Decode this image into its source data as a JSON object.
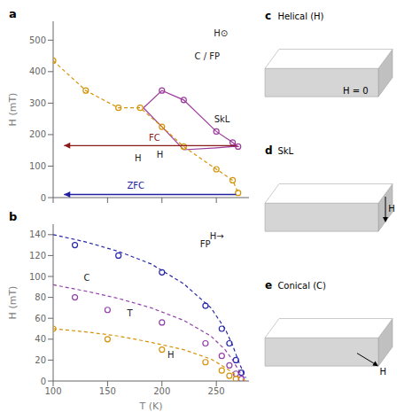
{
  "chart_data": [
    {
      "type": "scatter",
      "title": "a",
      "ylabel": "H (mT)",
      "xlim": [
        100,
        280
      ],
      "ylim": [
        0,
        560
      ],
      "xticks": [
        100,
        150,
        200,
        250
      ],
      "yticks": [
        0,
        100,
        200,
        300,
        400,
        500
      ],
      "tick_labels": "y",
      "series": [
        {
          "type": "polygon",
          "color": "#9B3A9B",
          "x": [
            183,
            200,
            220,
            250,
            265,
            270,
            265,
            250,
            220,
            200,
            183
          ],
          "values": [
            285,
            340,
            310,
            210,
            175,
            162,
            162,
            158,
            152,
            225,
            285
          ]
        },
        {
          "type": "line",
          "line_style": "dashed",
          "marker": "open_circle",
          "color": "#D4930A",
          "x": [
            100,
            130,
            160,
            180,
            200,
            220,
            250,
            265,
            270
          ],
          "values": [
            435,
            340,
            285,
            285,
            225,
            162,
            90,
            55,
            15
          ]
        },
        {
          "type": "scatter",
          "marker": "open_circle",
          "color": "#9B3A9B",
          "x": [
            200,
            220,
            250,
            265,
            270
          ],
          "values": [
            340,
            310,
            210,
            175,
            162
          ]
        }
      ],
      "arrows": [
        {
          "from": [
            268,
            165
          ],
          "to": [
            110,
            165
          ],
          "color": "#8B1A1A"
        },
        {
          "from": [
            268,
            10
          ],
          "to": [
            110,
            10
          ],
          "color": "#2020A0"
        }
      ],
      "annotations": [
        {
          "text": "FC",
          "x": 188,
          "y": 179,
          "color": "#8B1A1A"
        },
        {
          "text": "ZFC",
          "x": 168,
          "y": 28,
          "color": "#2020A0"
        },
        {
          "text": "C / FP",
          "x": 230,
          "y": 440
        },
        {
          "text": "SkL",
          "x": 248,
          "y": 238
        },
        {
          "text": "H",
          "x": 175,
          "y": 115
        },
        {
          "text": "H",
          "x": 195,
          "y": 128
        },
        {
          "text": "H⊙",
          "x": 247.6,
          "y": 512.4
        }
      ]
    },
    {
      "type": "scatter",
      "title": "b",
      "xlabel": "T (K)",
      "ylabel": "H (mT)",
      "xlim": [
        100,
        280
      ],
      "ylim": [
        0,
        150
      ],
      "xticks": [
        100,
        150,
        200,
        250
      ],
      "yticks": [
        0,
        20,
        40,
        60,
        80,
        100,
        120,
        140
      ],
      "series": [
        {
          "type": "line",
          "line_style": "dashed",
          "color": "#2828AA",
          "x": [
            100,
            130,
            160,
            190,
            220,
            245,
            258,
            265,
            270,
            274,
            277
          ],
          "values": [
            140,
            133,
            124,
            112,
            93,
            70,
            50,
            34,
            20,
            10,
            3
          ]
        },
        {
          "type": "scatter",
          "marker": "open_circle",
          "color": "#2828AA",
          "x": [
            120,
            160,
            200,
            240,
            255,
            262,
            268,
            273
          ],
          "values": [
            130,
            120,
            104,
            72,
            50,
            36,
            20,
            8
          ]
        },
        {
          "type": "line",
          "line_style": "dashed",
          "color": "#9040A8",
          "x": [
            100,
            130,
            160,
            190,
            220,
            245,
            258,
            265,
            270,
            274,
            277
          ],
          "values": [
            92,
            86,
            79,
            70,
            58,
            43,
            30,
            20,
            11,
            5,
            1
          ]
        },
        {
          "type": "scatter",
          "marker": "open_circle",
          "color": "#9040A8",
          "x": [
            120,
            150,
            200,
            240,
            255,
            262,
            268,
            273
          ],
          "values": [
            80,
            68,
            56,
            36,
            24,
            15,
            7,
            2
          ]
        },
        {
          "type": "line",
          "line_style": "dashed",
          "color": "#D4930A",
          "x": [
            100,
            130,
            160,
            190,
            220,
            245,
            258,
            265,
            270,
            274,
            277
          ],
          "values": [
            50,
            47,
            43,
            37,
            30,
            21,
            13,
            8,
            4,
            2,
            0
          ]
        },
        {
          "type": "scatter",
          "marker": "open_circle",
          "color": "#D4930A",
          "x": [
            100,
            150,
            200,
            240,
            255,
            262,
            268
          ],
          "values": [
            50,
            40,
            30,
            18,
            10,
            5,
            2
          ]
        }
      ],
      "annotations": [
        {
          "text": "FP",
          "x": 235,
          "y": 128
        },
        {
          "text": "C",
          "x": 128,
          "y": 96
        },
        {
          "text": "T",
          "x": 168,
          "y": 62
        },
        {
          "text": "H",
          "x": 205,
          "y": 22
        },
        {
          "text": "H→",
          "x": 244,
          "y": 135.75
        }
      ]
    },
    {
      "type": "schematic",
      "title": "c",
      "subtitle": "Helical (H)",
      "annotations": [
        {
          "text": "H = 0"
        }
      ]
    },
    {
      "type": "schematic",
      "title": "d",
      "subtitle": "SkL",
      "annotations": [
        {
          "text": "H",
          "arrow": "down"
        }
      ]
    },
    {
      "type": "schematic",
      "title": "e",
      "subtitle": "Conical (C)",
      "annotations": [
        {
          "text": "H",
          "arrow": "diagonal"
        }
      ]
    }
  ]
}
